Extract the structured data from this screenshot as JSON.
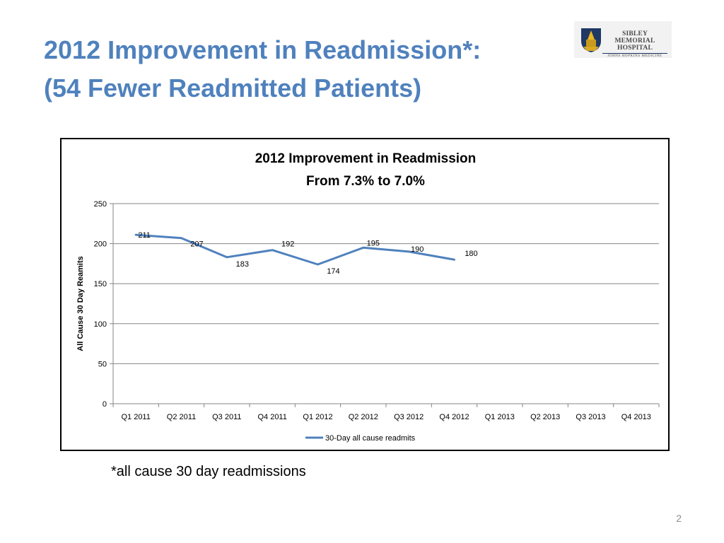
{
  "slide": {
    "title_line1": "2012 Improvement in Readmission*:",
    "title_line2": "(54 Fewer Readmitted Patients)",
    "footnote": "*all cause 30 day readmissions",
    "page_number": "2",
    "logo": {
      "name_line1": "SIBLEY MEMORIAL",
      "name_line2": "HOSPITAL",
      "subtitle": "JOHNS HOPKINS MEDICINE"
    }
  },
  "chart_data": {
    "type": "line",
    "title_line1": "2012 Improvement in Readmission",
    "title_line2": "From 7.3% to 7.0%",
    "xlabel": "",
    "ylabel": "All Cause 30 Day Reamits",
    "ylim": [
      0,
      250
    ],
    "yticks": [
      0,
      50,
      100,
      150,
      200,
      250
    ],
    "grid": true,
    "legend_position": "bottom",
    "categories": [
      "Q1 2011",
      "Q2 2011",
      "Q3 2011",
      "Q4 2011",
      "Q1 2012",
      "Q2 2012",
      "Q3 2012",
      "Q4 2012",
      "Q1 2013",
      "Q2 2013",
      "Q3 2013",
      "Q4 2013"
    ],
    "series": [
      {
        "name": "30-Day all cause readmits",
        "color": "#4f81bd",
        "values": [
          211,
          207,
          183,
          192,
          174,
          195,
          190,
          180,
          null,
          null,
          null,
          null
        ]
      }
    ]
  }
}
